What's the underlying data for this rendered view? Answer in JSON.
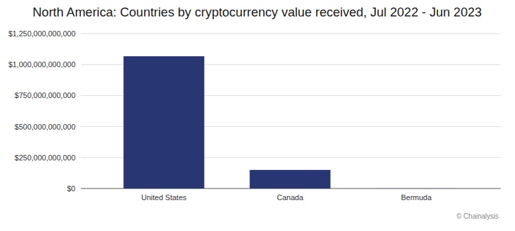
{
  "chart_data": {
    "type": "bar",
    "title": "North America: Countries by cryptocurrency value received, Jul 2022 - Jun 2023",
    "categories": [
      "United States",
      "Canada",
      "Bermuda"
    ],
    "values": [
      1067000000000,
      150000000000,
      1000000000
    ],
    "color": "#283673",
    "ylim": [
      0,
      1250000000000
    ],
    "yticks": [
      {
        "value": 0,
        "label": "$0"
      },
      {
        "value": 250000000000,
        "label": "$250,000,000,000"
      },
      {
        "value": 500000000000,
        "label": "$500,000,000,000"
      },
      {
        "value": 750000000000,
        "label": "$750,000,000,000"
      },
      {
        "value": 1000000000000,
        "label": "$1,000,000,000,000"
      },
      {
        "value": 1250000000000,
        "label": "$1,250,000,000,000"
      }
    ],
    "grid": true,
    "source": "© Chainalysis"
  }
}
